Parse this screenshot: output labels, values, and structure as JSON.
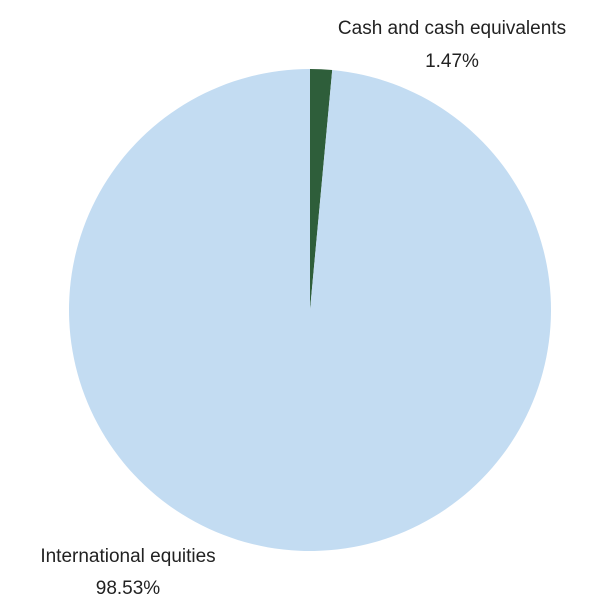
{
  "chart_data": {
    "type": "pie",
    "title": "",
    "slices": [
      {
        "label": "Cash and cash equivalents",
        "value": 1.47,
        "value_label": "1.47%",
        "color": "#2e5e3a"
      },
      {
        "label": "International equities",
        "value": 98.53,
        "value_label": "98.53%",
        "color": "#c3dcf2"
      }
    ],
    "start": "12 o'clock",
    "direction": "clockwise",
    "legend": "none"
  }
}
